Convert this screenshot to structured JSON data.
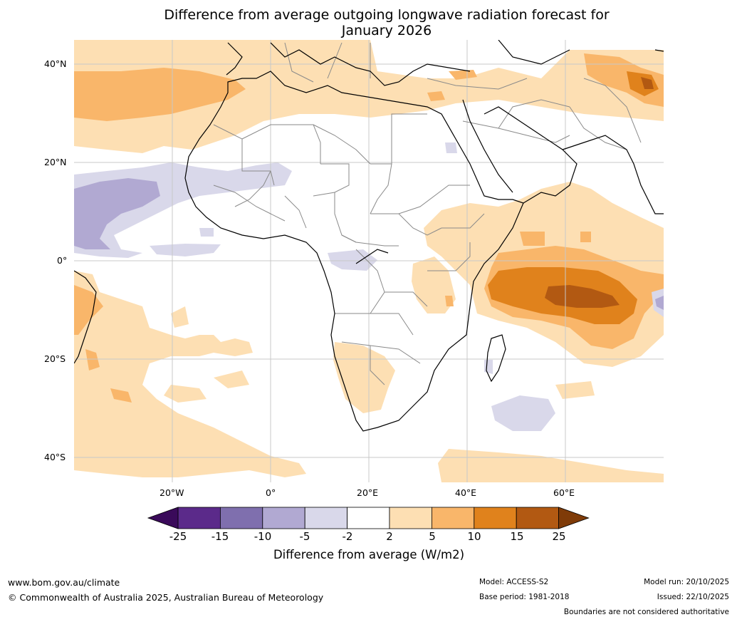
{
  "title_line1": "Difference from average outgoing longwave radiation forecast for",
  "title_line2": "January 2026",
  "lat_labels": [
    "40°N",
    "20°N",
    "0°",
    "20°S",
    "40°S"
  ],
  "lon_labels": [
    "20°W",
    "0°",
    "20°E",
    "40°E",
    "60°E"
  ],
  "colorbar": {
    "ticks": [
      "-25",
      "-15",
      "-10",
      "-5",
      "-2",
      "2",
      "5",
      "10",
      "15",
      "25"
    ],
    "colors": [
      "#5b2a8a",
      "#7f6fae",
      "#b1a9d2",
      "#d9d8ea",
      "#ffffff",
      "#fddfb3",
      "#f9b66a",
      "#e0821c",
      "#b25912"
    ],
    "under_color": "#3a0a5a",
    "over_color": "#7f3b08",
    "label": "Difference from average (W/m2)"
  },
  "footer": {
    "url": "www.bom.gov.au/climate",
    "copyright": "© Commonwealth of Australia 2025, Australian Bureau of Meteorology",
    "model": "Model: ACCESS-S2",
    "base_period": "Base period: 1981-2018",
    "model_run": "Model run: 20/10/2025",
    "issued": "Issued: 22/10/2025",
    "disclaimer": "Boundaries are not considered authoritative"
  }
}
